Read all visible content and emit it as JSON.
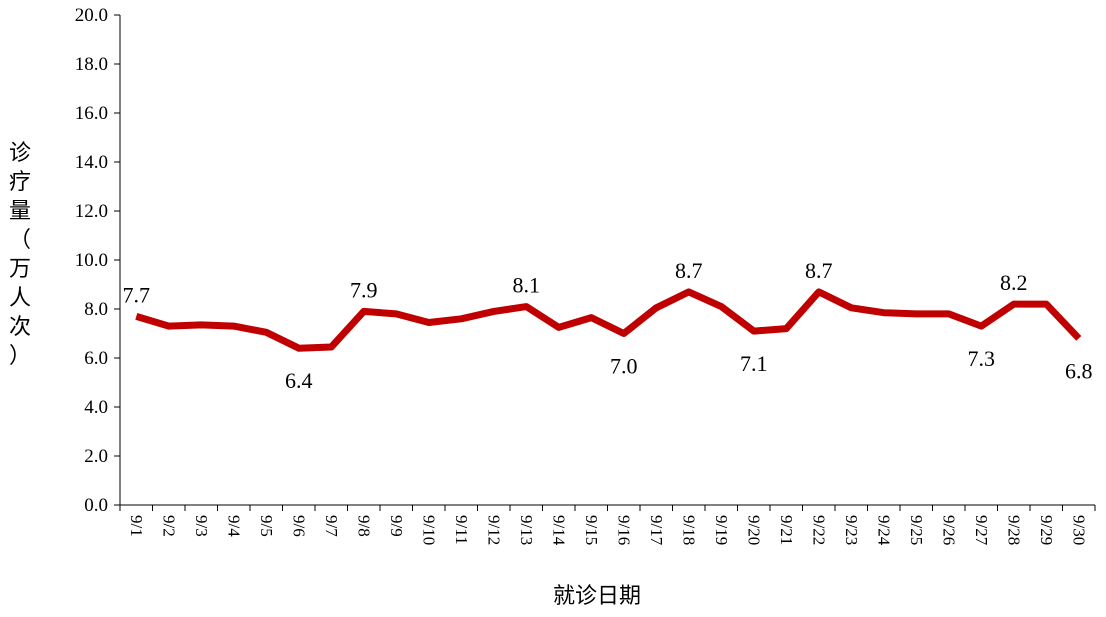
{
  "chart_data": {
    "type": "line",
    "xlabel": "就诊日期",
    "ylabel": "诊疗量（万人次）",
    "ylim": [
      0,
      20
    ],
    "yticks": [
      "0.0",
      "2.0",
      "4.0",
      "6.0",
      "8.0",
      "10.0",
      "12.0",
      "14.0",
      "16.0",
      "18.0",
      "20.0"
    ],
    "grid": false,
    "legend": "none",
    "categories": [
      "9/1",
      "9/2",
      "9/3",
      "9/4",
      "9/5",
      "9/6",
      "9/7",
      "9/8",
      "9/9",
      "9/10",
      "9/11",
      "9/12",
      "9/13",
      "9/14",
      "9/15",
      "9/16",
      "9/17",
      "9/18",
      "9/19",
      "9/20",
      "9/21",
      "9/22",
      "9/23",
      "9/24",
      "9/25",
      "9/26",
      "9/27",
      "9/28",
      "9/29",
      "9/30"
    ],
    "series": [
      {
        "color": "#c00000",
        "values": [
          7.7,
          7.3,
          7.35,
          7.3,
          7.05,
          6.4,
          6.45,
          7.9,
          7.8,
          7.45,
          7.6,
          7.9,
          8.1,
          7.25,
          7.65,
          7.0,
          8.05,
          8.7,
          8.1,
          7.1,
          7.2,
          8.7,
          8.05,
          7.85,
          7.8,
          7.8,
          7.3,
          8.2,
          8.2,
          6.8
        ]
      }
    ],
    "data_labels": [
      {
        "index": 0,
        "text": "7.7",
        "position": "above"
      },
      {
        "index": 5,
        "text": "6.4",
        "position": "below"
      },
      {
        "index": 7,
        "text": "7.9",
        "position": "above"
      },
      {
        "index": 12,
        "text": "8.1",
        "position": "above"
      },
      {
        "index": 15,
        "text": "7.0",
        "position": "below"
      },
      {
        "index": 17,
        "text": "8.7",
        "position": "above"
      },
      {
        "index": 19,
        "text": "7.1",
        "position": "below"
      },
      {
        "index": 21,
        "text": "8.7",
        "position": "above"
      },
      {
        "index": 26,
        "text": "7.3",
        "position": "below"
      },
      {
        "index": 27,
        "text": "8.2",
        "position": "above"
      },
      {
        "index": 29,
        "text": "6.8",
        "position": "below"
      }
    ]
  }
}
